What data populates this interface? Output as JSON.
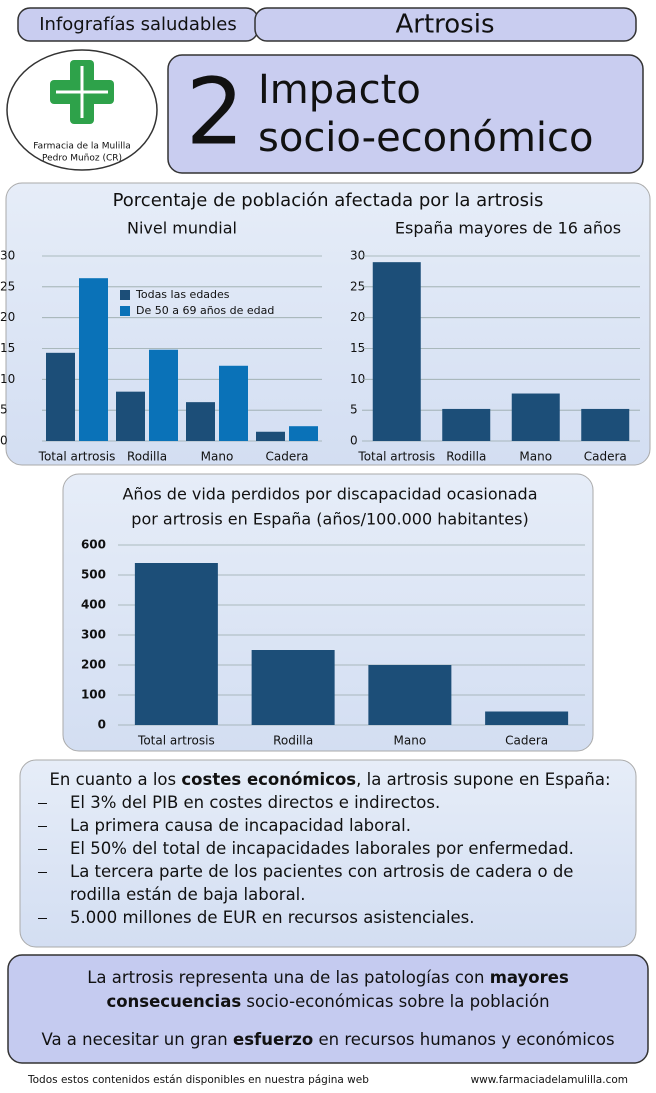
{
  "header": {
    "series_label": "Infografías saludables",
    "topic": "Artrosis",
    "number": "2",
    "title_lines": [
      "Impacto",
      "socio-económico"
    ]
  },
  "logo": {
    "lines": [
      "Farmacia de la Mulilla",
      "Pedro Muñoz (CR)"
    ]
  },
  "panel_title": "Porcentaje de población afectada por la artrosis",
  "chart_data": [
    {
      "type": "bar",
      "title": [
        "Nivel mundial"
      ],
      "categories": [
        "Total artrosis",
        "Rodilla",
        "Mano",
        "Cadera"
      ],
      "series": [
        {
          "name": "Todas las edades",
          "color": "#1c4e78",
          "values": [
            14.3,
            8,
            6.3,
            1.5
          ]
        },
        {
          "name": "De 50 a 69 años de edad",
          "color": "#0a72b8",
          "values": [
            26.4,
            14.8,
            12.2,
            2.4
          ]
        }
      ],
      "ylim": [
        0,
        30
      ],
      "yticks": [
        0,
        5,
        10,
        15,
        20,
        25,
        30
      ],
      "grid": true
    },
    {
      "type": "bar",
      "title": [
        "España mayores de 16 años"
      ],
      "categories": [
        "Total artrosis",
        "Rodilla",
        "Mano",
        "Cadera"
      ],
      "series": [
        {
          "color": "#1c4e78",
          "values": [
            29,
            5.2,
            7.7,
            5.2
          ]
        }
      ],
      "ylim": [
        0,
        30
      ],
      "yticks": [
        0,
        5,
        10,
        15,
        20,
        25,
        30
      ],
      "grid": true
    },
    {
      "type": "bar",
      "title": [
        "Años de vida perdidos por discapacidad ocasionada",
        "por artrosis en España (años/100.000 habitantes)"
      ],
      "categories": [
        "Total artrosis",
        "Rodilla",
        "Mano",
        "Cadera"
      ],
      "series": [
        {
          "color": "#1c4e78",
          "values": [
            540,
            250,
            200,
            45
          ]
        }
      ],
      "ylim": [
        0,
        600
      ],
      "yticks": [
        0,
        100,
        200,
        300,
        400,
        500,
        600
      ],
      "grid": true
    }
  ],
  "costs": {
    "intro": [
      "En cuanto a los ",
      "costes económicos",
      ", la artrosis supone en España:"
    ],
    "items": [
      "El 3% del PIB en costes directos e indirectos.",
      "La primera causa de incapacidad laboral.",
      "El 50% del total de incapacidades laborales por enfermedad.",
      "La tercera parte de los pacientes con artrosis de cadera o de rodilla están de baja laboral.",
      "5.000 millones de EUR en recursos asistenciales."
    ]
  },
  "conclusion": {
    "paragraphs": [
      [
        "La artrosis representa una de las patologías con ",
        "mayores consecuencias",
        " socio-económicas sobre la población"
      ],
      [
        "Va a necesitar un gran ",
        "esfuerzo",
        " en recursos humanos y económicos"
      ]
    ]
  },
  "footer": {
    "left": "Todos estos contenidos están disponibles en nuestra página web",
    "right": "www.farmaciadelamulilla.com"
  }
}
